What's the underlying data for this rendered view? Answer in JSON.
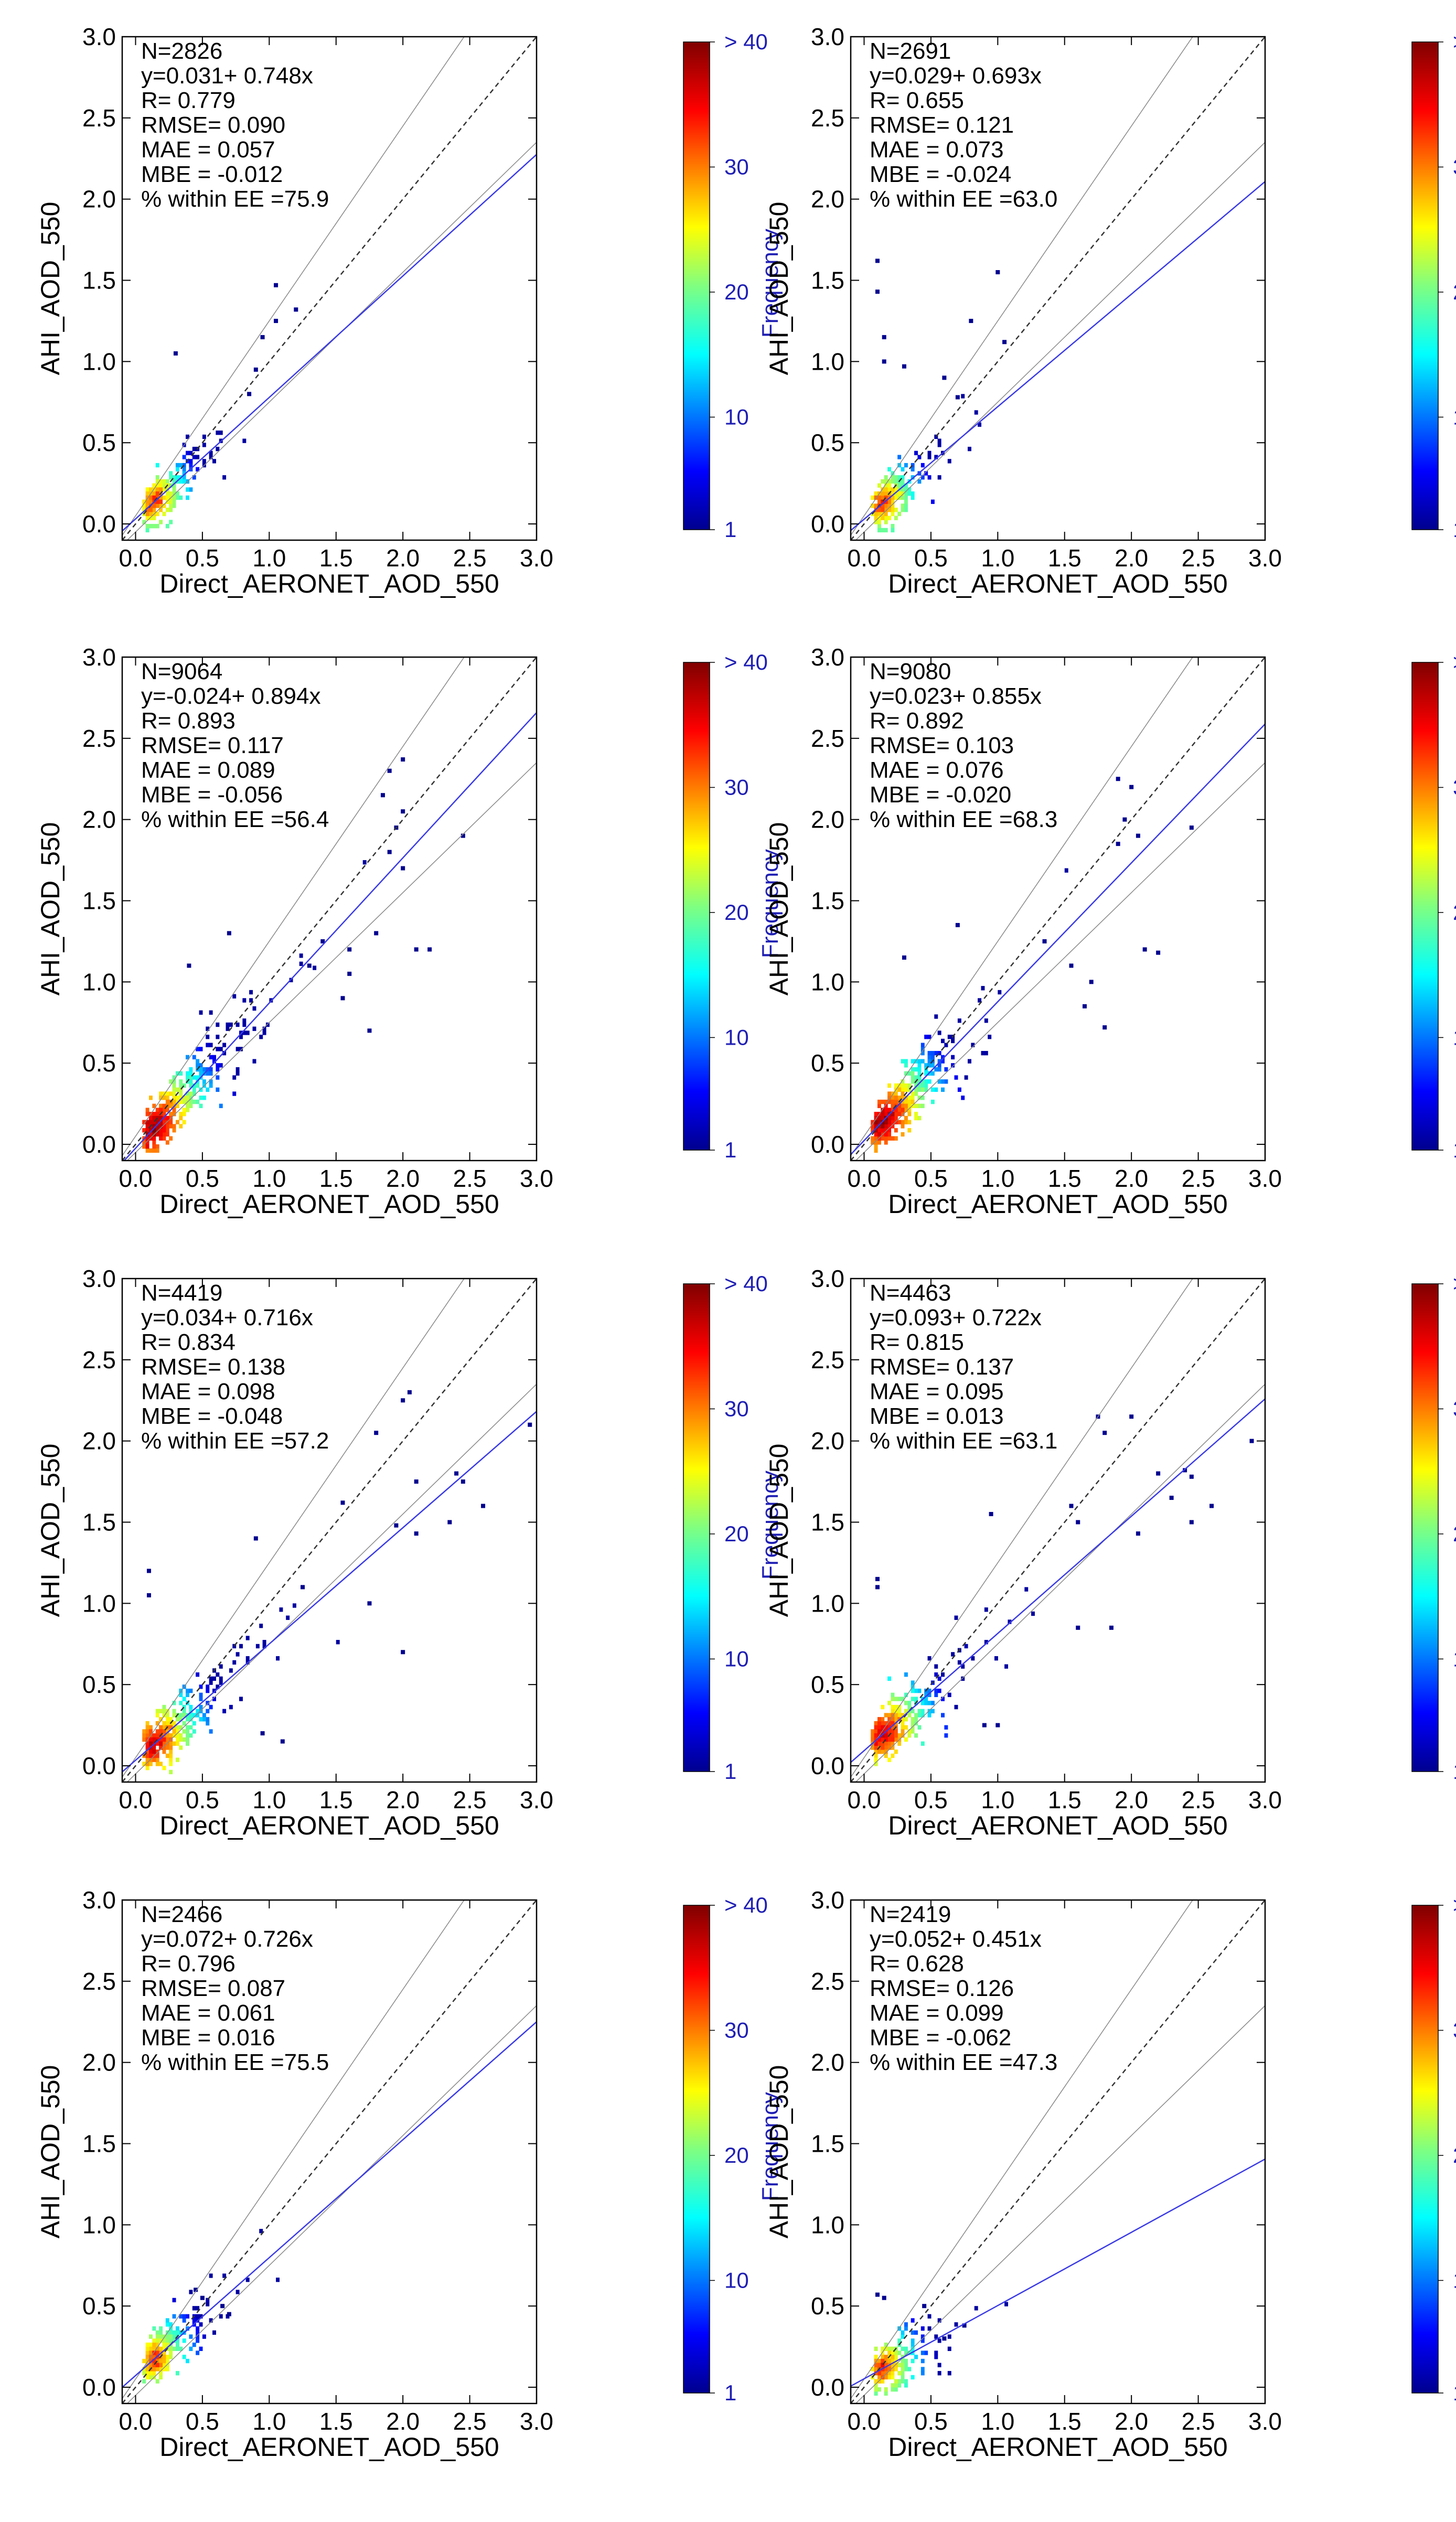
{
  "figure": {
    "x_label": "Direct_AERONET_AOD_550",
    "y_label": "AHI_AOD_550",
    "colorbar_label": "Frequency",
    "colorbar_ticks": [
      {
        "v": 1,
        "label": "1"
      },
      {
        "v": 10,
        "label": "10"
      },
      {
        "v": 20,
        "label": "20"
      },
      {
        "v": 30,
        "label": "30"
      },
      {
        "v": 40,
        "label": "> 40"
      }
    ]
  },
  "colors": {
    "fit_line": "#3a3ae6",
    "one_to_one": "#333333",
    "ee_lines": "#888888",
    "colorbar_label": "#1f1fb4",
    "axes": "#000000"
  },
  "chart_data": [
    {
      "type": "heatmap",
      "subtype": "density-scatter",
      "N": 2826,
      "intercept": 0.031,
      "slope": 0.748,
      "stats": [
        "N=2826",
        "y=0.031+ 0.748x",
        "R= 0.779",
        "RMSE= 0.090",
        "MAE = 0.057",
        "MBE = -0.012",
        "% within EE =75.9"
      ],
      "xlim": [
        0,
        3
      ],
      "ylim": [
        0,
        3
      ],
      "xticks": [
        0,
        0.5,
        1,
        1.5,
        2,
        2.5,
        3
      ],
      "yticks": [
        0,
        0.5,
        1,
        1.5,
        2,
        2.5,
        3
      ],
      "xlabel": "Direct_AERONET_AOD_550",
      "ylabel": "AHI_AOD_550",
      "colorbar": "Frequency",
      "outliers": [
        [
          0.3,
          1.05
        ],
        [
          1.05,
          1.47
        ],
        [
          1.2,
          1.32
        ],
        [
          0.95,
          1.15
        ],
        [
          0.9,
          0.95
        ],
        [
          0.85,
          0.8
        ],
        [
          1.05,
          1.25
        ]
      ]
    },
    {
      "type": "heatmap",
      "subtype": "density-scatter",
      "N": 2691,
      "intercept": 0.029,
      "slope": 0.693,
      "stats": [
        "N=2691",
        "y=0.029+ 0.693x",
        "R= 0.655",
        "RMSE= 0.121",
        "MAE = 0.073",
        "MBE = -0.024",
        "% within EE =63.0"
      ],
      "xlim": [
        0,
        3
      ],
      "ylim": [
        0,
        3
      ],
      "xticks": [
        0,
        0.5,
        1,
        1.5,
        2,
        2.5,
        3
      ],
      "yticks": [
        0,
        0.5,
        1,
        1.5,
        2,
        2.5,
        3
      ],
      "xlabel": "Direct_AERONET_AOD_550",
      "ylabel": "AHI_AOD_550",
      "colorbar": "Frequency",
      "outliers": [
        [
          0.1,
          1.62
        ],
        [
          0.1,
          1.43
        ],
        [
          0.15,
          1.15
        ],
        [
          0.15,
          1.0
        ],
        [
          0.3,
          0.97
        ],
        [
          0.8,
          1.25
        ],
        [
          1.0,
          1.55
        ],
        [
          1.05,
          1.12
        ],
        [
          0.7,
          0.78
        ],
        [
          0.6,
          0.9
        ]
      ]
    },
    {
      "type": "heatmap",
      "subtype": "density-scatter",
      "N": 9064,
      "intercept": -0.024,
      "slope": 0.894,
      "stats": [
        "N=9064",
        "y=-0.024+ 0.894x",
        "R= 0.893",
        "RMSE= 0.117",
        "MAE = 0.089",
        "MBE = -0.056",
        "% within EE =56.4"
      ],
      "xlim": [
        0,
        3
      ],
      "ylim": [
        0,
        3
      ],
      "xticks": [
        0,
        0.5,
        1,
        1.5,
        2,
        2.5,
        3
      ],
      "yticks": [
        0,
        0.5,
        1,
        1.5,
        2,
        2.5,
        3
      ],
      "xlabel": "Direct_AERONET_AOD_550",
      "ylabel": "AHI_AOD_550",
      "colorbar": "Frequency",
      "outliers": [
        [
          1.9,
          2.3
        ],
        [
          2.0,
          2.37
        ],
        [
          1.85,
          2.15
        ],
        [
          2.0,
          2.05
        ],
        [
          1.95,
          1.95
        ],
        [
          1.9,
          1.8
        ],
        [
          2.0,
          1.7
        ],
        [
          2.1,
          1.2
        ],
        [
          2.2,
          1.2
        ],
        [
          2.45,
          1.9
        ],
        [
          1.6,
          1.05
        ],
        [
          1.55,
          0.9
        ],
        [
          1.75,
          0.7
        ],
        [
          1.4,
          1.25
        ],
        [
          0.4,
          1.1
        ],
        [
          0.7,
          1.3
        ],
        [
          1.8,
          1.3
        ],
        [
          1.3,
          1.1
        ],
        [
          1.6,
          1.2
        ]
      ]
    },
    {
      "type": "heatmap",
      "subtype": "density-scatter",
      "N": 9080,
      "intercept": 0.023,
      "slope": 0.855,
      "stats": [
        "N=9080",
        "y=0.023+ 0.855x",
        "R= 0.892",
        "RMSE= 0.103",
        "MAE = 0.076",
        "MBE = -0.020",
        "% within EE =68.3"
      ],
      "xlim": [
        0,
        3
      ],
      "ylim": [
        0,
        3
      ],
      "xticks": [
        0,
        0.5,
        1,
        1.5,
        2,
        2.5,
        3
      ],
      "yticks": [
        0,
        0.5,
        1,
        1.5,
        2,
        2.5,
        3
      ],
      "xlabel": "Direct_AERONET_AOD_550",
      "ylabel": "AHI_AOD_550",
      "colorbar": "Frequency",
      "outliers": [
        [
          1.9,
          2.25
        ],
        [
          2.0,
          2.2
        ],
        [
          1.95,
          2.0
        ],
        [
          2.05,
          1.9
        ],
        [
          1.9,
          1.85
        ],
        [
          2.1,
          1.2
        ],
        [
          2.2,
          1.18
        ],
        [
          2.45,
          1.95
        ],
        [
          1.7,
          1.0
        ],
        [
          1.65,
          0.85
        ],
        [
          1.8,
          0.72
        ],
        [
          0.3,
          1.15
        ],
        [
          0.7,
          1.35
        ],
        [
          1.35,
          1.25
        ],
        [
          1.55,
          1.1
        ]
      ]
    },
    {
      "type": "heatmap",
      "subtype": "density-scatter",
      "N": 4419,
      "intercept": 0.034,
      "slope": 0.716,
      "stats": [
        "N=4419",
        "y=0.034+ 0.716x",
        "R= 0.834",
        "RMSE= 0.138",
        "MAE = 0.098",
        "MBE = -0.048",
        "% within EE =57.2"
      ],
      "xlim": [
        0,
        3
      ],
      "ylim": [
        0,
        3
      ],
      "xticks": [
        0,
        0.5,
        1,
        1.5,
        2,
        2.5,
        3
      ],
      "yticks": [
        0,
        0.5,
        1,
        1.5,
        2,
        2.5,
        3
      ],
      "xlabel": "Direct_AERONET_AOD_550",
      "ylabel": "AHI_AOD_550",
      "colorbar": "Frequency",
      "outliers": [
        [
          2.0,
          2.25
        ],
        [
          2.05,
          2.3
        ],
        [
          1.8,
          2.05
        ],
        [
          2.1,
          1.75
        ],
        [
          2.4,
          1.8
        ],
        [
          2.45,
          1.75
        ],
        [
          2.6,
          1.6
        ],
        [
          2.35,
          1.5
        ],
        [
          2.1,
          1.43
        ],
        [
          1.95,
          1.48
        ],
        [
          1.55,
          1.62
        ],
        [
          1.75,
          1.0
        ],
        [
          2.0,
          0.7
        ],
        [
          2.95,
          2.1
        ],
        [
          0.9,
          1.4
        ],
        [
          0.1,
          1.2
        ],
        [
          0.1,
          1.05
        ],
        [
          1.1,
          0.15
        ],
        [
          0.95,
          0.2
        ],
        [
          1.25,
          1.1
        ]
      ]
    },
    {
      "type": "heatmap",
      "subtype": "density-scatter",
      "N": 4463,
      "intercept": 0.093,
      "slope": 0.722,
      "stats": [
        "N=4463",
        "y=0.093+ 0.722x",
        "R= 0.815",
        "RMSE= 0.137",
        "MAE = 0.095",
        "MBE = 0.013",
        "% within EE =63.1"
      ],
      "xlim": [
        0,
        3
      ],
      "ylim": [
        0,
        3
      ],
      "xticks": [
        0,
        0.5,
        1,
        1.5,
        2,
        2.5,
        3
      ],
      "yticks": [
        0,
        0.5,
        1,
        1.5,
        2,
        2.5,
        3
      ],
      "xlabel": "Direct_AERONET_AOD_550",
      "ylabel": "AHI_AOD_550",
      "colorbar": "Frequency",
      "outliers": [
        [
          1.75,
          2.15
        ],
        [
          2.0,
          2.15
        ],
        [
          1.8,
          2.05
        ],
        [
          2.2,
          1.8
        ],
        [
          2.4,
          1.82
        ],
        [
          2.45,
          1.78
        ],
        [
          2.6,
          1.6
        ],
        [
          2.3,
          1.65
        ],
        [
          2.05,
          1.43
        ],
        [
          2.45,
          1.5
        ],
        [
          2.9,
          2.0
        ],
        [
          1.55,
          1.6
        ],
        [
          1.6,
          1.5
        ],
        [
          0.95,
          1.55
        ],
        [
          0.1,
          1.15
        ],
        [
          0.1,
          1.1
        ],
        [
          1.6,
          0.85
        ],
        [
          1.85,
          0.85
        ],
        [
          0.9,
          0.25
        ],
        [
          1.0,
          0.25
        ]
      ]
    },
    {
      "type": "heatmap",
      "subtype": "density-scatter",
      "N": 2466,
      "intercept": 0.072,
      "slope": 0.726,
      "stats": [
        "N=2466",
        "y=0.072+ 0.726x",
        "R= 0.796",
        "RMSE= 0.087",
        "MAE = 0.061",
        "MBE = 0.016",
        "% within EE =75.5"
      ],
      "xlim": [
        0,
        3
      ],
      "ylim": [
        0,
        3
      ],
      "xticks": [
        0,
        0.5,
        1,
        1.5,
        2,
        2.5,
        3
      ],
      "yticks": [
        0,
        0.5,
        1,
        1.5,
        2,
        2.5,
        3
      ],
      "xlabel": "Direct_AERONET_AOD_550",
      "ylabel": "AHI_AOD_550",
      "colorbar": "Frequency",
      "outliers": [
        [
          0.5,
          0.55
        ],
        [
          0.45,
          0.6
        ],
        [
          0.7,
          0.45
        ],
        [
          0.65,
          0.5
        ]
      ]
    },
    {
      "type": "heatmap",
      "subtype": "density-scatter",
      "N": 2419,
      "intercept": 0.052,
      "slope": 0.451,
      "stats": [
        "N=2419",
        "y=0.052+ 0.451x",
        "R= 0.628",
        "RMSE= 0.126",
        "MAE = 0.099",
        "MBE = -0.062",
        "% within EE =47.3"
      ],
      "xlim": [
        0,
        3
      ],
      "ylim": [
        0,
        3
      ],
      "xticks": [
        0,
        0.5,
        1,
        1.5,
        2,
        2.5,
        3
      ],
      "yticks": [
        0,
        0.5,
        1,
        1.5,
        2,
        2.5,
        3
      ],
      "xlabel": "Direct_AERONET_AOD_550",
      "ylabel": "AHI_AOD_550",
      "colorbar": "Frequency",
      "outliers": [
        [
          0.1,
          0.57
        ],
        [
          0.15,
          0.55
        ],
        [
          0.45,
          0.5
        ],
        [
          0.75,
          0.38
        ],
        [
          0.6,
          0.3
        ]
      ]
    }
  ]
}
